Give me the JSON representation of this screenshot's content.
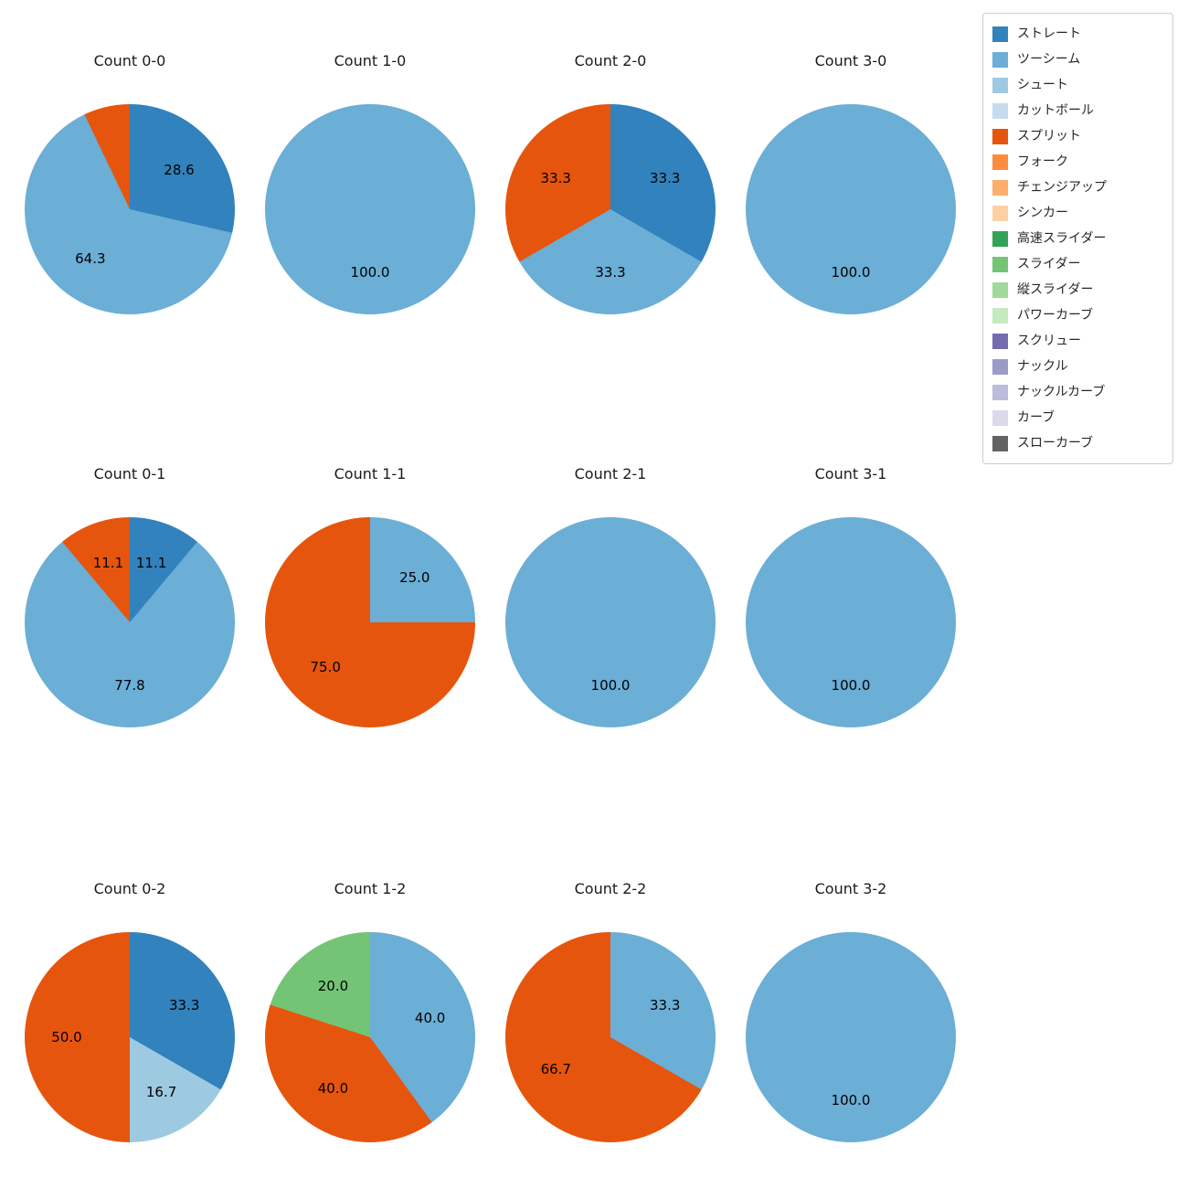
{
  "figure": {
    "background": "#ffffff"
  },
  "legend": {
    "items": [
      {
        "label": "ストレート",
        "color": "#3182bd"
      },
      {
        "label": "ツーシーム",
        "color": "#6baed6"
      },
      {
        "label": "シュート",
        "color": "#9ecae1"
      },
      {
        "label": "カットボール",
        "color": "#c6dbef"
      },
      {
        "label": "スプリット",
        "color": "#e6550d"
      },
      {
        "label": "フォーク",
        "color": "#fd8d3c"
      },
      {
        "label": "チェンジアップ",
        "color": "#fdae6b"
      },
      {
        "label": "シンカー",
        "color": "#fdd0a2"
      },
      {
        "label": "高速スライダー",
        "color": "#31a354"
      },
      {
        "label": "スライダー",
        "color": "#74c476"
      },
      {
        "label": "縦スライダー",
        "color": "#a1d99b"
      },
      {
        "label": "パワーカーブ",
        "color": "#c7e9c0"
      },
      {
        "label": "スクリュー",
        "color": "#756bb1"
      },
      {
        "label": "ナックル",
        "color": "#9e9ac8"
      },
      {
        "label": "ナックルカーブ",
        "color": "#bcbddc"
      },
      {
        "label": "カーブ",
        "color": "#dadaeb"
      },
      {
        "label": "スローカーブ",
        "color": "#636363"
      }
    ]
  },
  "chart_data": [
    {
      "type": "pie",
      "title": "Count 0-0",
      "slices": [
        {
          "label": "ストレート",
          "value": 28.6
        },
        {
          "label": "ツーシーム",
          "value": 64.3
        },
        {
          "label": "スプリット",
          "value": 7.1,
          "show_label": false
        }
      ]
    },
    {
      "type": "pie",
      "title": "Count 1-0",
      "slices": [
        {
          "label": "ツーシーム",
          "value": 100.0
        }
      ]
    },
    {
      "type": "pie",
      "title": "Count 2-0",
      "slices": [
        {
          "label": "ストレート",
          "value": 33.3
        },
        {
          "label": "ツーシーム",
          "value": 33.3
        },
        {
          "label": "スプリット",
          "value": 33.3
        }
      ]
    },
    {
      "type": "pie",
      "title": "Count 3-0",
      "slices": [
        {
          "label": "ツーシーム",
          "value": 100.0
        }
      ]
    },
    {
      "type": "pie",
      "title": "Count 0-1",
      "slices": [
        {
          "label": "ストレート",
          "value": 11.1
        },
        {
          "label": "ツーシーム",
          "value": 77.8
        },
        {
          "label": "スプリット",
          "value": 11.1
        }
      ]
    },
    {
      "type": "pie",
      "title": "Count 1-1",
      "slices": [
        {
          "label": "ツーシーム",
          "value": 25.0
        },
        {
          "label": "スプリット",
          "value": 75.0
        }
      ]
    },
    {
      "type": "pie",
      "title": "Count 2-1",
      "slices": [
        {
          "label": "ツーシーム",
          "value": 100.0
        }
      ]
    },
    {
      "type": "pie",
      "title": "Count 3-1",
      "slices": [
        {
          "label": "ツーシーム",
          "value": 100.0
        }
      ]
    },
    {
      "type": "pie",
      "title": "Count 0-2",
      "slices": [
        {
          "label": "ストレート",
          "value": 33.3
        },
        {
          "label": "シュート",
          "value": 16.7
        },
        {
          "label": "スプリット",
          "value": 50.0
        }
      ]
    },
    {
      "type": "pie",
      "title": "Count 1-2",
      "slices": [
        {
          "label": "ツーシーム",
          "value": 40.0
        },
        {
          "label": "スプリット",
          "value": 40.0
        },
        {
          "label": "スライダー",
          "value": 20.0
        }
      ]
    },
    {
      "type": "pie",
      "title": "Count 2-2",
      "slices": [
        {
          "label": "ツーシーム",
          "value": 33.3
        },
        {
          "label": "スプリット",
          "value": 66.7
        }
      ]
    },
    {
      "type": "pie",
      "title": "Count 3-2",
      "slices": [
        {
          "label": "ツーシーム",
          "value": 100.0
        }
      ]
    }
  ]
}
